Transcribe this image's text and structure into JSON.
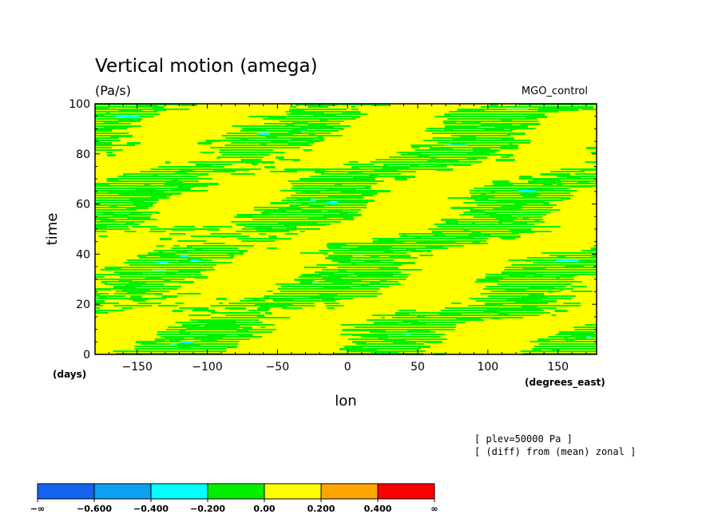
{
  "chart_data": {
    "type": "heatmap",
    "title": "Vertical motion (amega)",
    "units": "(Pa/s)",
    "experiment": "MGO_control",
    "xlabel": "lon",
    "ylabel": "time",
    "x_units": "(degrees_east)",
    "y_units": "(days)",
    "xlim": [
      -180,
      177.5
    ],
    "ylim": [
      0,
      100
    ],
    "x_ticks": [
      -150,
      -100,
      -50,
      0,
      50,
      100,
      150
    ],
    "y_ticks": [
      0,
      20,
      40,
      60,
      80,
      100
    ],
    "grid": false,
    "notes": [
      "[ plev=50000 Pa ]",
      "[ (diff) from (mean) zonal ]"
    ],
    "contour_levels": [
      "-∞",
      "-0.600",
      "-0.400",
      "-0.200",
      "0.00",
      "0.200",
      "0.400",
      "∞"
    ],
    "colorbar_colors": [
      "#1464f0",
      "#0ca0f0",
      "#00ffff",
      "#00f000",
      "#ffff00",
      "#ffa500",
      "#ff0000"
    ],
    "field_description": "Dense eastward-propagating bands alternating between the -0.200..0.00 (green) and 0.00..0.200 (yellow) intervals, with sparse -0.400..-0.200 (cyan) specks"
  }
}
